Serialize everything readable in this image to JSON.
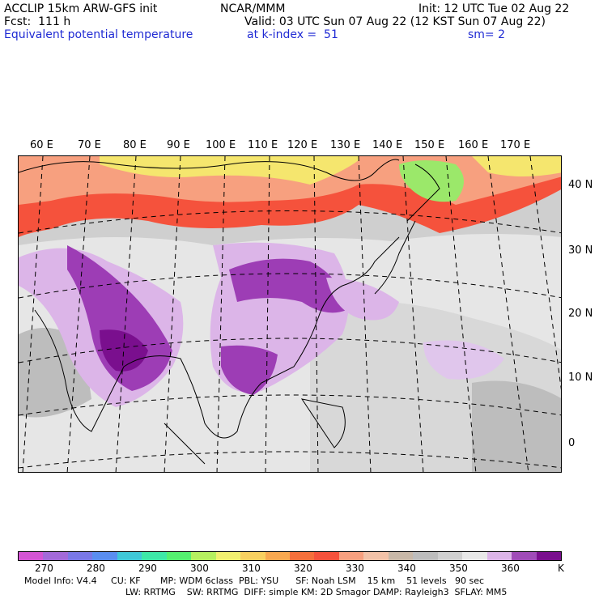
{
  "header": {
    "line1_left": "ACCLIP 15km ARW-GFS init",
    "line1_mid": "NCAR/MMM",
    "line1_right": "Init: 12 UTC Tue 02 Aug 22",
    "line2_left": "Fcst:  111 h",
    "line2_right": "Valid: 03 UTC Sun 07 Aug 22 (12 KST Sun 07 Aug 22)",
    "line3_left": "Equivalent potential temperature",
    "line3_mid": "at k-index =  51",
    "line3_right": "sm= 2"
  },
  "map": {
    "lon_labels": [
      "60 E",
      "70 E",
      "80 E",
      "90 E",
      "100 E",
      "110 E",
      "120 E",
      "130 E",
      "140 E",
      "150 E",
      "160 E",
      "170 E"
    ],
    "lat_labels": [
      "40 N",
      "30 N",
      "20 N",
      "10 N",
      "0"
    ],
    "colors": {
      "background": "#cfcfcf",
      "land_grey": "#bdbdbd",
      "light_grey": "#e6e6e6",
      "purple_light": "#dcb5e8",
      "purple_mid": "#9d3db5",
      "purple_dark": "#7a0f8e",
      "orange_red": "#f5523c",
      "salmon": "#f7a07f",
      "yellow": "#f5e66e",
      "green": "#9be86a"
    }
  },
  "colorbar": {
    "colors": [
      "#d455d4",
      "#a36ad9",
      "#7a78e6",
      "#5a8ef0",
      "#3fc8d8",
      "#3ee8a8",
      "#55f070",
      "#b6f060",
      "#f2f070",
      "#f8d060",
      "#f8a850",
      "#f5703c",
      "#f5523c",
      "#f7a07f",
      "#f2c2a8",
      "#c8b8a8",
      "#bdbdbd",
      "#d0d0d0",
      "#e8e8e8",
      "#dcb5e8",
      "#a04cb8",
      "#7a0f8e"
    ],
    "tick_labels": [
      "270",
      "280",
      "290",
      "300",
      "310",
      "320",
      "330",
      "340",
      "350",
      "360"
    ],
    "unit": "K"
  },
  "footer": {
    "line1": "Model Info: V4.4     CU: KF       MP: WDM 6class  PBL: YSU      SF: Noah LSM    15 km    51 levels   90 sec",
    "line2": "LW: RRTMG    SW: RRTMG  DIFF: simple KM: 2D Smagor DAMP: Rayleigh3  SFLAY: MM5"
  }
}
